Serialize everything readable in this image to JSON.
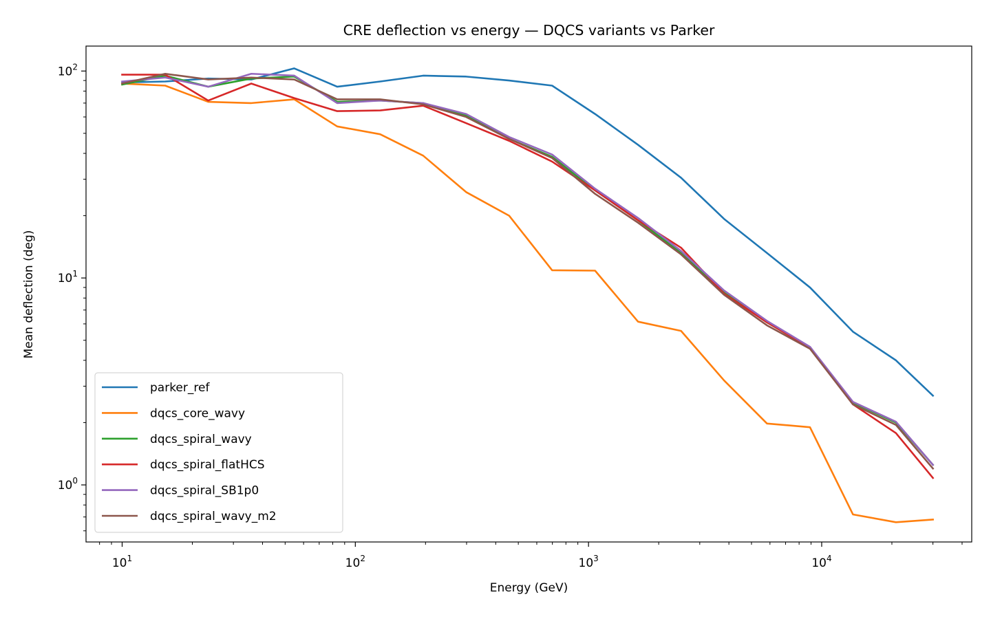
{
  "chart_data": {
    "type": "line",
    "title": "CRE deflection vs energy — DQCS variants vs Parker",
    "xlabel": "Energy (GeV)",
    "ylabel": "Mean deflection (deg)",
    "xscale": "log",
    "yscale": "log",
    "xlim": [
      7,
      44000
    ],
    "ylim": [
      0.53,
      132
    ],
    "grid": false,
    "legend_position": "lower-left",
    "x_ticks": [
      {
        "base": "10",
        "exp": "1",
        "value": 10
      },
      {
        "base": "10",
        "exp": "2",
        "value": 100
      },
      {
        "base": "10",
        "exp": "3",
        "value": 1000
      },
      {
        "base": "10",
        "exp": "4",
        "value": 10000
      }
    ],
    "y_ticks": [
      {
        "base": "10",
        "exp": "0",
        "value": 1
      },
      {
        "base": "10",
        "exp": "1",
        "value": 10
      },
      {
        "base": "10",
        "exp": "2",
        "value": 100
      }
    ],
    "x": [
      10,
      15.3,
      23.4,
      35.8,
      54.7,
      83.6,
      127.8,
      195.4,
      298.7,
      456.6,
      698.1,
      1067,
      1631,
      2494,
      3812,
      5827,
      8908,
      13617,
      20816,
      30000
    ],
    "series": [
      {
        "name": "parker_ref",
        "color": "#1f77b4",
        "values": [
          88,
          89,
          92,
          91,
          103,
          84,
          89,
          95,
          94,
          90,
          85,
          62,
          44,
          30.5,
          19.3,
          13.2,
          9.0,
          5.5,
          4.0,
          2.7
        ]
      },
      {
        "name": "dqcs_core_wavy",
        "color": "#ff7f0e",
        "values": [
          87,
          85,
          71,
          70,
          73,
          54,
          49.5,
          39,
          26,
          20,
          10.9,
          10.85,
          6.15,
          5.55,
          3.2,
          1.98,
          1.9,
          0.72,
          0.66,
          0.68
        ]
      },
      {
        "name": "dqcs_spiral_wavy",
        "color": "#2ca02c",
        "values": [
          86,
          95,
          84,
          92,
          94,
          71,
          72,
          70,
          61,
          47,
          38.5,
          26.5,
          19.0,
          13.2,
          8.5,
          6.1,
          4.6,
          2.5,
          2.0,
          1.25
        ]
      },
      {
        "name": "dqcs_spiral_flatHCS",
        "color": "#d62728",
        "values": [
          96,
          96,
          72,
          87,
          74,
          64,
          64.5,
          68,
          56,
          46,
          36.5,
          26.5,
          19.0,
          14.0,
          8.4,
          6.1,
          4.6,
          2.45,
          1.78,
          1.08
        ]
      },
      {
        "name": "dqcs_spiral_SB1p0",
        "color": "#9467bd",
        "values": [
          89,
          93,
          84,
          97,
          95,
          70,
          72,
          70,
          62,
          48,
          39.5,
          27,
          19.5,
          13.5,
          8.7,
          6.2,
          4.65,
          2.52,
          2.02,
          1.25
        ]
      },
      {
        "name": "dqcs_spiral_wavy_m2",
        "color": "#8c564b",
        "values": [
          87,
          97,
          91,
          93,
          91,
          73,
          73,
          69,
          60,
          47,
          38,
          25.5,
          18.5,
          13.0,
          8.3,
          5.9,
          4.55,
          2.45,
          1.95,
          1.2
        ]
      }
    ]
  }
}
